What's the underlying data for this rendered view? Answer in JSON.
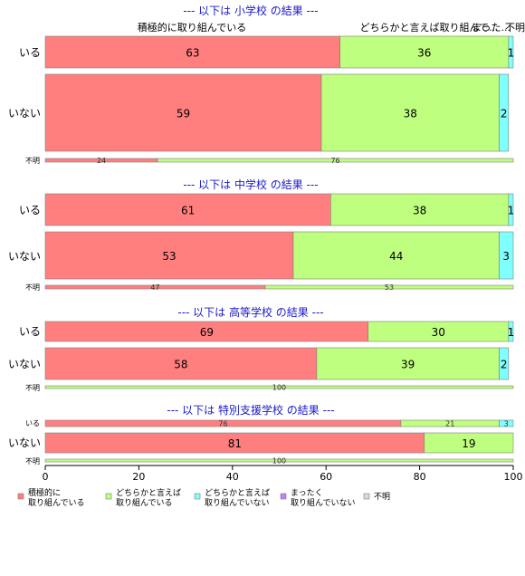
{
  "chart_data": {
    "type": "bar",
    "orientation": "horizontal",
    "stacked": true,
    "xlim": [
      0,
      100
    ],
    "x_ticks": [
      "0",
      "20",
      "40",
      "60",
      "80",
      "100"
    ],
    "grid": false,
    "legend_position": "bottom-left",
    "series": [
      {
        "name": "積極的に\n取り組んでいる",
        "color": "#ff7f7f"
      },
      {
        "name": "どちらかと言えば\n取り組んでいる",
        "color": "#bfff7f"
      },
      {
        "name": "どちらかと言えば\n取り組んでいない",
        "color": "#7fffff"
      },
      {
        "name": "まったく\n取り組んでいない",
        "color": "#bf7fff"
      },
      {
        "name": "不明",
        "color": "#d9d9d9"
      }
    ],
    "header_labels": [
      "積極的に取り組んでいる",
      "どちらかと言えば取り組んで...",
      "まった...",
      "不明"
    ],
    "panels": [
      {
        "title": "--- 以下は 小学校 の結果 ---",
        "rows": [
          {
            "label": "いる",
            "values": [
              63,
              36,
              1,
              0,
              0
            ],
            "labels": [
              "63",
              "36",
              "1",
              "",
              ""
            ]
          },
          {
            "label": "いない",
            "values": [
              59,
              38,
              2,
              0,
              0
            ],
            "labels": [
              "59",
              "38",
              "2",
              "",
              ""
            ]
          },
          {
            "label": "不明",
            "values": [
              24,
              76,
              0,
              0,
              0
            ],
            "labels": [
              "24",
              "76",
              "",
              "",
              ""
            ]
          }
        ]
      },
      {
        "title": "--- 以下は 中学校 の結果 ---",
        "rows": [
          {
            "label": "いる",
            "values": [
              61,
              38,
              1,
              0,
              0
            ],
            "labels": [
              "61",
              "38",
              "1",
              "",
              ""
            ]
          },
          {
            "label": "いない",
            "values": [
              53,
              44,
              3,
              0,
              0
            ],
            "labels": [
              "53",
              "44",
              "3",
              "",
              ""
            ]
          },
          {
            "label": "不明",
            "values": [
              47,
              53,
              0,
              0,
              0
            ],
            "labels": [
              "47",
              "53",
              "",
              "",
              ""
            ]
          }
        ]
      },
      {
        "title": "--- 以下は 高等学校 の結果 ---",
        "rows": [
          {
            "label": "いる",
            "values": [
              69,
              30,
              1,
              0,
              0
            ],
            "labels": [
              "69",
              "30",
              "1",
              "",
              ""
            ]
          },
          {
            "label": "いない",
            "values": [
              58,
              39,
              2,
              0,
              0
            ],
            "labels": [
              "58",
              "39",
              "2",
              "",
              ""
            ]
          },
          {
            "label": "不明",
            "values": [
              0,
              100,
              0,
              0,
              0
            ],
            "labels": [
              "",
              "100",
              "",
              "",
              ""
            ]
          }
        ]
      },
      {
        "title": "--- 以下は 特別支援学校 の結果 ---",
        "rows": [
          {
            "label": "いる",
            "values": [
              76,
              21,
              3,
              0,
              0
            ],
            "labels": [
              "76",
              "21",
              "3",
              "",
              ""
            ]
          },
          {
            "label": "いない",
            "values": [
              81,
              19,
              0,
              0,
              0
            ],
            "labels": [
              "81",
              "19",
              "",
              "",
              ""
            ]
          },
          {
            "label": "不明",
            "values": [
              0,
              100,
              0,
              0,
              0
            ],
            "labels": [
              "",
              "100",
              "",
              "",
              ""
            ]
          }
        ]
      }
    ]
  }
}
